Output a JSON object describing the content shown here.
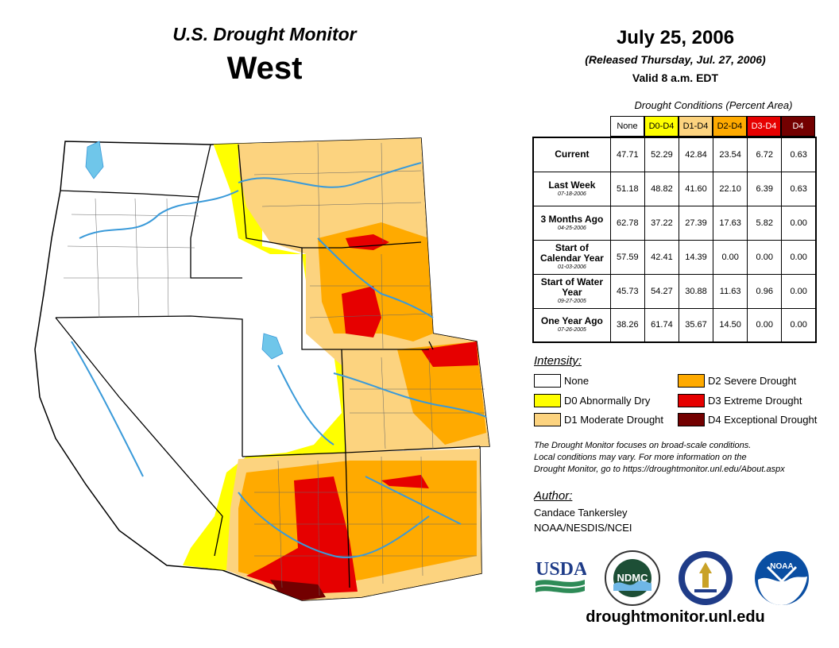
{
  "header": {
    "product": "U.S. Drought Monitor",
    "region": "West",
    "date": "July 25, 2006",
    "released": "(Released Thursday, Jul. 27, 2006)",
    "valid": "Valid 8 a.m. EDT"
  },
  "table": {
    "caption": "Drought Conditions (Percent Area)",
    "columns": [
      {
        "label": "None",
        "color": "#ffffff"
      },
      {
        "label": "D0-D4",
        "color": "#ffff00"
      },
      {
        "label": "D1-D4",
        "color": "#fcd37f"
      },
      {
        "label": "D2-D4",
        "color": "#ffaa00"
      },
      {
        "label": "D3-D4",
        "color": "#e60000"
      },
      {
        "label": "D4",
        "color": "#730000"
      }
    ],
    "rows": [
      {
        "label": "Current",
        "date": "",
        "values": [
          "47.71",
          "52.29",
          "42.84",
          "23.54",
          "6.72",
          "0.63"
        ]
      },
      {
        "label": "Last Week",
        "date": "07-18-2006",
        "values": [
          "51.18",
          "48.82",
          "41.60",
          "22.10",
          "6.39",
          "0.63"
        ]
      },
      {
        "label": "3 Months Ago",
        "date": "04-25-2006",
        "values": [
          "62.78",
          "37.22",
          "27.39",
          "17.63",
          "5.82",
          "0.00"
        ]
      },
      {
        "label": "Start of Calendar Year",
        "date": "01-03-2006",
        "values": [
          "57.59",
          "42.41",
          "14.39",
          "0.00",
          "0.00",
          "0.00"
        ]
      },
      {
        "label": "Start of Water Year",
        "date": "09-27-2005",
        "values": [
          "45.73",
          "54.27",
          "30.88",
          "11.63",
          "0.96",
          "0.00"
        ]
      },
      {
        "label": "One Year Ago",
        "date": "07-26-2005",
        "values": [
          "38.26",
          "61.74",
          "35.67",
          "14.50",
          "0.00",
          "0.00"
        ]
      }
    ]
  },
  "legend": {
    "title": "Intensity:",
    "items": [
      {
        "label": "None",
        "color": "#ffffff"
      },
      {
        "label": "D0 Abnormally Dry",
        "color": "#ffff00"
      },
      {
        "label": "D1 Moderate Drought",
        "color": "#fcd37f"
      },
      {
        "label": "D2 Severe Drought",
        "color": "#ffaa00"
      },
      {
        "label": "D3 Extreme Drought",
        "color": "#e60000"
      },
      {
        "label": "D4 Exceptional Drought",
        "color": "#730000"
      }
    ]
  },
  "note": {
    "line1": "The Drought Monitor focuses on broad-scale conditions.",
    "line2": "Local conditions may vary. For more information on the",
    "line3": "Drought Monitor, go to https://droughtmonitor.unl.edu/About.aspx"
  },
  "author": {
    "title": "Author:",
    "name": "Candace Tankersley",
    "org": "NOAA/NESDIS/NCEI"
  },
  "logos": {
    "usda": "USDA",
    "ndmc": "NDMC",
    "noaa": "NOAA"
  },
  "website": "droughtmonitor.unl.edu"
}
